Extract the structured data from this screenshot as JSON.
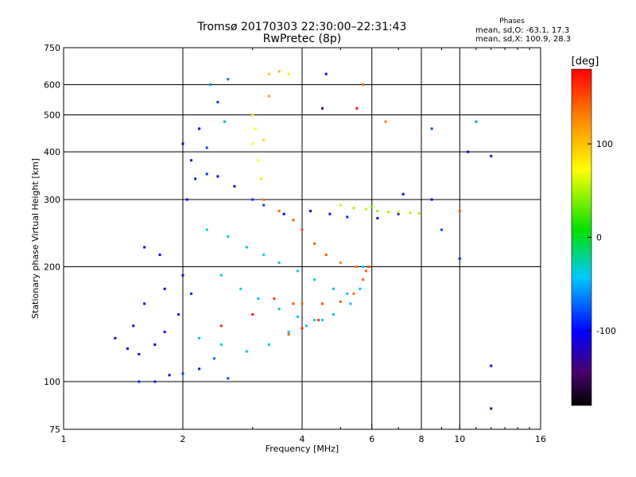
{
  "header": {
    "title_line1": "Tromsø 20170303 22:30:00–22:31:43",
    "title_line2": "RwPretec (8p)",
    "phases_heading": "Phases",
    "phases_o": "mean, sd,O: -63.1, 17.3",
    "phases_x": "mean, sd,X: 100.9, 28.3"
  },
  "colorbar": {
    "unit_label": "[deg]",
    "min": -180,
    "max": 180,
    "tick_values": [
      100,
      0,
      -100
    ],
    "tick_labels": [
      "100",
      "0",
      "-100"
    ]
  },
  "chart_data": {
    "type": "scatter",
    "title": "Tromsø 20170303 22:30:00–22:31:43",
    "subtitle": "RwPretec (8p)",
    "xlabel": "Frequency [MHz]",
    "ylabel": "Stationary phase Virtual Height [km]",
    "xscale": "log",
    "yscale": "log",
    "xlim": [
      1,
      16
    ],
    "ylim": [
      75,
      750
    ],
    "x_ticks": [
      1,
      2,
      4,
      6,
      8,
      10,
      16
    ],
    "x_tick_labels": [
      "1",
      "2",
      "4",
      "6",
      "8",
      "10",
      "16"
    ],
    "y_ticks": [
      75,
      100,
      200,
      300,
      400,
      500,
      600,
      750
    ],
    "y_tick_labels": [
      "75",
      "100",
      "200",
      "300",
      "400",
      "500",
      "600",
      "750"
    ],
    "grid": true,
    "legend": "colorbar right",
    "color_by": "phase [deg]",
    "series": [
      {
        "points": [
          [
            1.35,
            130,
            -120
          ],
          [
            1.45,
            122,
            -110
          ],
          [
            1.55,
            118,
            -95
          ],
          [
            1.7,
            125,
            -115
          ],
          [
            1.8,
            135,
            -100
          ],
          [
            1.95,
            150,
            -105
          ],
          [
            2.1,
            170,
            -90
          ],
          [
            2.0,
            190,
            -110
          ],
          [
            1.8,
            175,
            -120
          ],
          [
            1.6,
            160,
            -100
          ],
          [
            1.5,
            140,
            -115
          ],
          [
            1.75,
            215,
            -105
          ],
          [
            1.6,
            225,
            -120
          ]
        ]
      },
      {
        "points": [
          [
            1.55,
            100,
            -90
          ],
          [
            1.7,
            100,
            -95
          ],
          [
            1.85,
            104,
            -100
          ],
          [
            2.0,
            105,
            -85
          ],
          [
            2.2,
            108,
            -95
          ],
          [
            2.6,
            102,
            -80
          ],
          [
            2.4,
            115,
            -70
          ]
        ]
      },
      {
        "points": [
          [
            2.0,
            420,
            -110
          ],
          [
            2.1,
            380,
            -120
          ],
          [
            2.15,
            340,
            -95
          ],
          [
            2.05,
            300,
            -105
          ],
          [
            2.2,
            460,
            -100
          ],
          [
            2.3,
            410,
            -80
          ],
          [
            2.3,
            350,
            -90
          ],
          [
            2.45,
            540,
            -85
          ],
          [
            2.35,
            600,
            -60
          ],
          [
            2.6,
            620,
            -70
          ],
          [
            2.55,
            480,
            -50
          ]
        ]
      },
      {
        "points": [
          [
            2.45,
            345,
            -100
          ],
          [
            2.7,
            325,
            -110
          ],
          [
            3.0,
            300,
            -90
          ],
          [
            3.2,
            290,
            -85
          ],
          [
            3.6,
            275,
            -100
          ],
          [
            4.2,
            280,
            -110
          ],
          [
            4.7,
            275,
            -95
          ],
          [
            5.2,
            270,
            -90
          ],
          [
            6.2,
            268,
            -100
          ],
          [
            7.0,
            275,
            -110
          ]
        ]
      },
      {
        "points": [
          [
            2.3,
            250,
            -40
          ],
          [
            2.6,
            240,
            -45
          ],
          [
            2.9,
            225,
            -35
          ],
          [
            3.2,
            215,
            -40
          ],
          [
            3.5,
            205,
            -30
          ],
          [
            3.9,
            195,
            -45
          ],
          [
            4.3,
            185,
            -35
          ],
          [
            4.8,
            175,
            -30
          ],
          [
            5.2,
            170,
            -40
          ]
        ]
      },
      {
        "points": [
          [
            2.5,
            190,
            -40
          ],
          [
            2.8,
            175,
            -35
          ],
          [
            3.1,
            165,
            -45
          ],
          [
            3.5,
            155,
            -30
          ],
          [
            3.9,
            148,
            -40
          ],
          [
            4.3,
            145,
            -35
          ],
          [
            4.8,
            150,
            -30
          ],
          [
            5.3,
            160,
            -45
          ],
          [
            5.6,
            175,
            -35
          ],
          [
            5.7,
            200,
            -40
          ]
        ]
      },
      {
        "points": [
          [
            2.2,
            130,
            -45
          ],
          [
            2.5,
            125,
            -40
          ],
          [
            2.9,
            120,
            -45
          ],
          [
            3.3,
            125,
            -35
          ],
          [
            3.7,
            135,
            -40
          ],
          [
            4.1,
            140,
            -45
          ],
          [
            4.5,
            145,
            -35
          ]
        ]
      },
      {
        "points": [
          [
            3.0,
            420,
            75
          ],
          [
            3.1,
            380,
            70
          ],
          [
            3.15,
            340,
            80
          ],
          [
            3.05,
            460,
            72
          ],
          [
            3.2,
            430,
            90
          ],
          [
            3.0,
            500,
            85
          ],
          [
            3.3,
            560,
            110
          ],
          [
            3.3,
            640,
            95
          ],
          [
            3.7,
            640,
            80
          ],
          [
            3.5,
            650,
            105
          ]
        ]
      },
      {
        "points": [
          [
            3.2,
            300,
            135
          ],
          [
            3.5,
            280,
            140
          ],
          [
            3.8,
            265,
            145
          ],
          [
            4.0,
            250,
            150
          ],
          [
            4.3,
            230,
            140
          ],
          [
            4.6,
            215,
            145
          ],
          [
            5.0,
            205,
            130
          ],
          [
            5.5,
            200,
            135
          ],
          [
            5.8,
            195,
            140
          ]
        ]
      },
      {
        "points": [
          [
            4.0,
            160,
            140
          ],
          [
            4.5,
            160,
            150
          ],
          [
            5.0,
            162,
            145
          ],
          [
            5.4,
            170,
            135
          ],
          [
            5.7,
            185,
            140
          ],
          [
            5.9,
            200,
            150
          ],
          [
            4.4,
            145,
            160
          ],
          [
            4.0,
            138,
            165
          ],
          [
            3.7,
            133,
            145
          ]
        ]
      },
      {
        "points": [
          [
            2.5,
            140,
            165
          ],
          [
            3.0,
            150,
            170
          ],
          [
            3.4,
            165,
            160
          ],
          [
            3.8,
            160,
            155
          ]
        ]
      },
      {
        "points": [
          [
            5.4,
            285,
            50
          ],
          [
            5.8,
            283,
            55
          ],
          [
            6.2,
            280,
            45
          ],
          [
            6.6,
            278,
            50
          ],
          [
            7.0,
            278,
            48
          ],
          [
            7.5,
            277,
            52
          ],
          [
            7.9,
            276,
            50
          ],
          [
            5.0,
            290,
            60
          ],
          [
            6.0,
            287,
            40
          ]
        ]
      },
      {
        "points": [
          [
            5.7,
            600,
            140
          ],
          [
            6.5,
            480,
            130
          ],
          [
            5.5,
            520,
            175
          ],
          [
            4.6,
            640,
            -100
          ],
          [
            4.5,
            520,
            -150
          ],
          [
            8.5,
            300,
            -110
          ],
          [
            7.2,
            310,
            -100
          ],
          [
            10.0,
            210,
            -90
          ],
          [
            10.5,
            400,
            -120
          ],
          [
            12.0,
            390,
            -130
          ],
          [
            12.0,
            110,
            -100
          ],
          [
            12.0,
            85,
            -150
          ],
          [
            11.0,
            480,
            -60
          ],
          [
            8.5,
            460,
            -80
          ],
          [
            9.0,
            250,
            -80
          ],
          [
            10.0,
            280,
            145
          ]
        ]
      }
    ]
  }
}
